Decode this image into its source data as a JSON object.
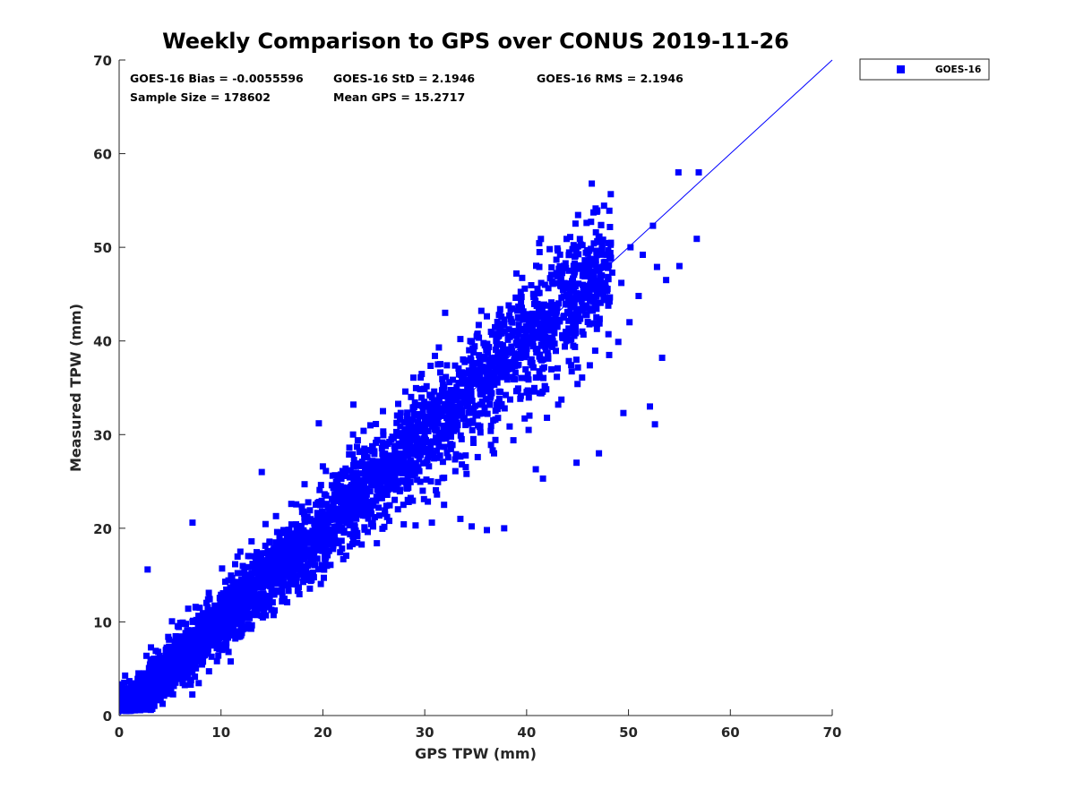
{
  "chart_data": {
    "type": "scatter",
    "title": "Weekly Comparison to GPS over CONUS 2019-11-26",
    "xlabel": "GPS TPW (mm)",
    "ylabel": "Measured TPW (mm)",
    "xlim": [
      0,
      70
    ],
    "ylim": [
      0,
      70
    ],
    "xticks": [
      0,
      10,
      20,
      30,
      40,
      50,
      60,
      70
    ],
    "yticks": [
      0,
      10,
      20,
      30,
      40,
      50,
      60,
      70
    ],
    "grid": false,
    "legend_position": "outside-top-right",
    "reference_line": {
      "name": "1:1 line",
      "from": [
        0,
        0
      ],
      "to": [
        70,
        70
      ],
      "color": "#0000ff"
    },
    "annotations": [
      "GOES-16 Bias = -0.0055596",
      "GOES-16 StD = 2.1946",
      "GOES-16 RMS = 2.1946",
      "Sample Size = 178602",
      "Mean GPS = 15.2717"
    ],
    "stats": {
      "bias": -0.0055596,
      "std": 2.1946,
      "rms": 2.1946,
      "sample_size": 178602,
      "mean_gps": 15.2717
    },
    "series": [
      {
        "name": "GOES-16",
        "color": "#0000ff",
        "marker": "square",
        "points": [
          [
            0.5,
            3.5
          ],
          [
            1.2,
            2.1
          ],
          [
            2.3,
            4.0
          ],
          [
            3.1,
            2.5
          ],
          [
            4.2,
            5.3
          ],
          [
            5.1,
            4.2
          ],
          [
            6.3,
            7.1
          ],
          [
            7.2,
            6.0
          ],
          [
            8.4,
            9.2
          ],
          [
            9.5,
            8.1
          ],
          [
            10.3,
            11.2
          ],
          [
            11.5,
            10.4
          ],
          [
            12.4,
            13.3
          ],
          [
            13.6,
            12.2
          ],
          [
            14.5,
            15.4
          ],
          [
            15.3,
            14.1
          ],
          [
            16.6,
            17.2
          ],
          [
            17.4,
            16.3
          ],
          [
            18.5,
            19.5
          ],
          [
            19.3,
            18.2
          ],
          [
            20.5,
            21.4
          ],
          [
            21.6,
            20.3
          ],
          [
            22.4,
            23.6
          ],
          [
            23.5,
            22.1
          ],
          [
            24.6,
            25.3
          ],
          [
            25.4,
            24.5
          ],
          [
            26.5,
            27.6
          ],
          [
            27.3,
            26.2
          ],
          [
            28.6,
            29.4
          ],
          [
            29.5,
            28.3
          ],
          [
            30.4,
            31.5
          ],
          [
            31.6,
            30.2
          ],
          [
            32.5,
            33.6
          ],
          [
            33.4,
            32.4
          ],
          [
            34.6,
            35.5
          ],
          [
            35.5,
            34.3
          ],
          [
            36.4,
            37.6
          ],
          [
            37.6,
            36.5
          ],
          [
            38.5,
            39.4
          ],
          [
            39.4,
            38.2
          ],
          [
            40.6,
            41.5
          ],
          [
            41.5,
            40.3
          ],
          [
            42.4,
            43.6
          ],
          [
            43.6,
            42.5
          ],
          [
            44.5,
            45.4
          ],
          [
            45.4,
            44.2
          ],
          [
            46.3,
            46.5
          ],
          [
            47.5,
            45.6
          ],
          [
            48.4,
            47.3
          ],
          [
            49.3,
            46.2
          ],
          [
            2.8,
            15.6
          ],
          [
            7.2,
            20.6
          ],
          [
            14.0,
            26.0
          ],
          [
            19.6,
            31.2
          ],
          [
            23.0,
            33.2
          ],
          [
            31.3,
            37.5
          ],
          [
            32.0,
            43.0
          ],
          [
            39.0,
            47.2
          ],
          [
            44.5,
            49.8
          ],
          [
            46.4,
            56.8
          ],
          [
            46.9,
            53.8
          ],
          [
            52.4,
            52.3
          ],
          [
            54.9,
            58.0
          ],
          [
            56.9,
            58.0
          ],
          [
            56.7,
            50.9
          ],
          [
            55.0,
            48.0
          ],
          [
            53.3,
            38.2
          ],
          [
            52.6,
            31.1
          ],
          [
            52.1,
            33.0
          ],
          [
            49.5,
            32.3
          ],
          [
            47.1,
            28.0
          ],
          [
            44.9,
            27.0
          ],
          [
            41.6,
            25.3
          ],
          [
            40.9,
            26.3
          ],
          [
            36.8,
            28.0
          ],
          [
            34.1,
            25.8
          ],
          [
            31.9,
            22.5
          ],
          [
            31.2,
            23.6
          ],
          [
            30.7,
            20.6
          ],
          [
            37.8,
            20.0
          ],
          [
            36.1,
            19.8
          ],
          [
            34.6,
            20.2
          ],
          [
            33.5,
            21.0
          ],
          [
            29.1,
            20.3
          ],
          [
            25.3,
            18.4
          ],
          [
            22.0,
            16.7
          ],
          [
            21.0,
            17.8
          ],
          [
            20.3,
            16.9
          ],
          [
            18.9,
            14.5
          ],
          [
            17.4,
            14.0
          ],
          [
            16.5,
            12.1
          ],
          [
            14.1,
            11.6
          ],
          [
            12.8,
            10.4
          ],
          [
            11.7,
            8.4
          ],
          [
            10.4,
            7.6
          ],
          [
            9.6,
            5.8
          ],
          [
            8.0,
            5.8
          ],
          [
            6.3,
            4.7
          ],
          [
            4.6,
            2.7
          ],
          [
            3.0,
            1.6
          ],
          [
            1.5,
            0.9
          ],
          [
            0.7,
            1.4
          ],
          [
            1.9,
            4.5
          ],
          [
            3.6,
            6.9
          ],
          [
            4.9,
            8.1
          ],
          [
            6.0,
            9.9
          ],
          [
            7.5,
            11.6
          ],
          [
            8.8,
            13.1
          ],
          [
            10.1,
            15.7
          ],
          [
            11.9,
            17.5
          ],
          [
            13.0,
            18.6
          ],
          [
            15.4,
            21.3
          ],
          [
            16.9,
            22.6
          ],
          [
            18.2,
            24.7
          ],
          [
            20.0,
            26.6
          ],
          [
            22.6,
            28.6
          ],
          [
            24.0,
            30.4
          ],
          [
            25.9,
            32.5
          ],
          [
            28.1,
            34.6
          ],
          [
            29.6,
            36.1
          ],
          [
            31.0,
            38.4
          ],
          [
            33.5,
            40.2
          ],
          [
            35.3,
            41.7
          ],
          [
            37.4,
            43.4
          ],
          [
            39.5,
            44.7
          ],
          [
            41.8,
            46.0
          ],
          [
            43.0,
            47.1
          ],
          [
            45.6,
            48.0
          ],
          [
            48.0,
            49.7
          ],
          [
            50.2,
            50.0
          ],
          [
            51.4,
            49.2
          ],
          [
            52.8,
            47.9
          ],
          [
            53.7,
            46.5
          ],
          [
            51.0,
            44.8
          ],
          [
            50.1,
            42.0
          ],
          [
            49.0,
            39.9
          ],
          [
            48.1,
            38.5
          ],
          [
            46.2,
            37.4
          ],
          [
            45.0,
            35.4
          ],
          [
            43.1,
            33.2
          ],
          [
            42.0,
            31.8
          ],
          [
            40.2,
            30.5
          ],
          [
            38.7,
            29.4
          ],
          [
            36.5,
            28.9
          ],
          [
            35.2,
            27.6
          ],
          [
            33.0,
            26.1
          ],
          [
            31.9,
            25.4
          ],
          [
            29.8,
            24.0
          ],
          [
            27.9,
            22.5
          ],
          [
            26.3,
            21.2
          ],
          [
            24.4,
            19.6
          ],
          [
            22.9,
            18.3
          ]
        ]
      }
    ]
  }
}
